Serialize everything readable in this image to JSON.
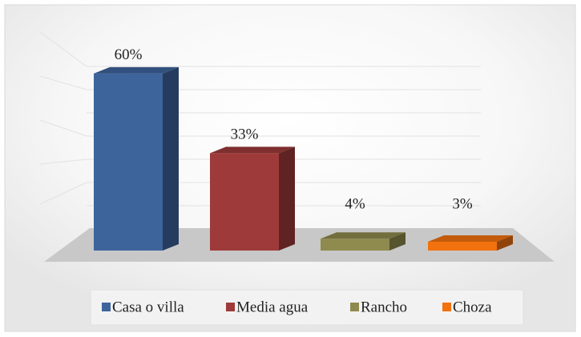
{
  "chart_data": {
    "type": "bar3d",
    "categories": [
      "Casa o villa",
      "Media agua",
      "Rancho",
      "Choza"
    ],
    "values": [
      60,
      33,
      4,
      3
    ],
    "value_labels": [
      "60%",
      "33%",
      "4%",
      "3%"
    ],
    "colors": [
      "#3e649c",
      "#9e3b3a",
      "#8f8a4e",
      "#f2720f"
    ],
    "ylim": [
      0,
      70
    ],
    "legend": "bottom"
  }
}
